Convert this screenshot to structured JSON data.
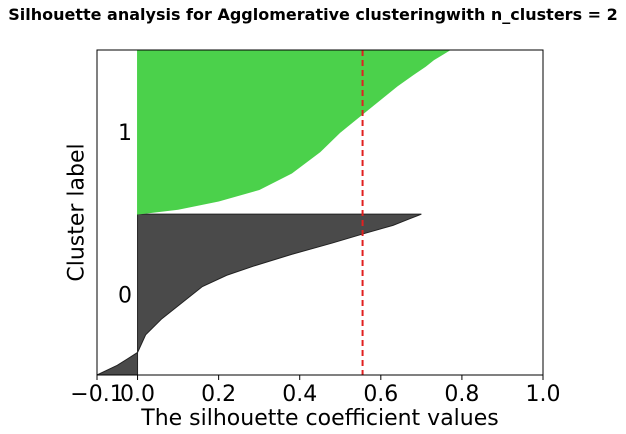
{
  "chart_data": {
    "type": "area",
    "title": "Silhouette analysis for Agglomerative clusteringwith n_clusters = 2",
    "xlabel": "The silhouette coefficient values",
    "ylabel": "Cluster label",
    "xlim": [
      -0.1,
      1.0
    ],
    "xticks": [
      -0.1,
      0.0,
      0.2,
      0.4,
      0.6,
      0.8,
      1.0
    ],
    "xtick_labels": [
      "−0.1",
      "0.0",
      "0.2",
      "0.4",
      "0.6",
      "0.8",
      "1.0"
    ],
    "grid": false,
    "average_silhouette_score": 0.555,
    "clusters": [
      {
        "label": "0",
        "color": "#4a4a4a",
        "profile": [
          [
            0.0,
            -0.1
          ],
          [
            0.06,
            -0.05
          ],
          [
            0.14,
            0.0
          ],
          [
            0.25,
            0.02
          ],
          [
            0.35,
            0.06
          ],
          [
            0.45,
            0.11
          ],
          [
            0.55,
            0.16
          ],
          [
            0.62,
            0.22
          ],
          [
            0.68,
            0.29
          ],
          [
            0.75,
            0.38
          ],
          [
            0.82,
            0.48
          ],
          [
            0.88,
            0.56
          ],
          [
            0.93,
            0.63
          ],
          [
            0.97,
            0.67
          ],
          [
            0.99,
            0.69
          ],
          [
            1.0,
            0.7
          ]
        ]
      },
      {
        "label": "1",
        "color": "#4bd14b",
        "profile": [
          [
            0.0,
            0.0
          ],
          [
            0.03,
            0.1
          ],
          [
            0.08,
            0.2
          ],
          [
            0.15,
            0.3
          ],
          [
            0.25,
            0.38
          ],
          [
            0.38,
            0.45
          ],
          [
            0.5,
            0.5
          ],
          [
            0.6,
            0.55
          ],
          [
            0.7,
            0.6
          ],
          [
            0.78,
            0.64
          ],
          [
            0.85,
            0.68
          ],
          [
            0.9,
            0.71
          ],
          [
            0.94,
            0.73
          ],
          [
            0.97,
            0.75
          ],
          [
            1.0,
            0.77
          ]
        ]
      }
    ]
  }
}
